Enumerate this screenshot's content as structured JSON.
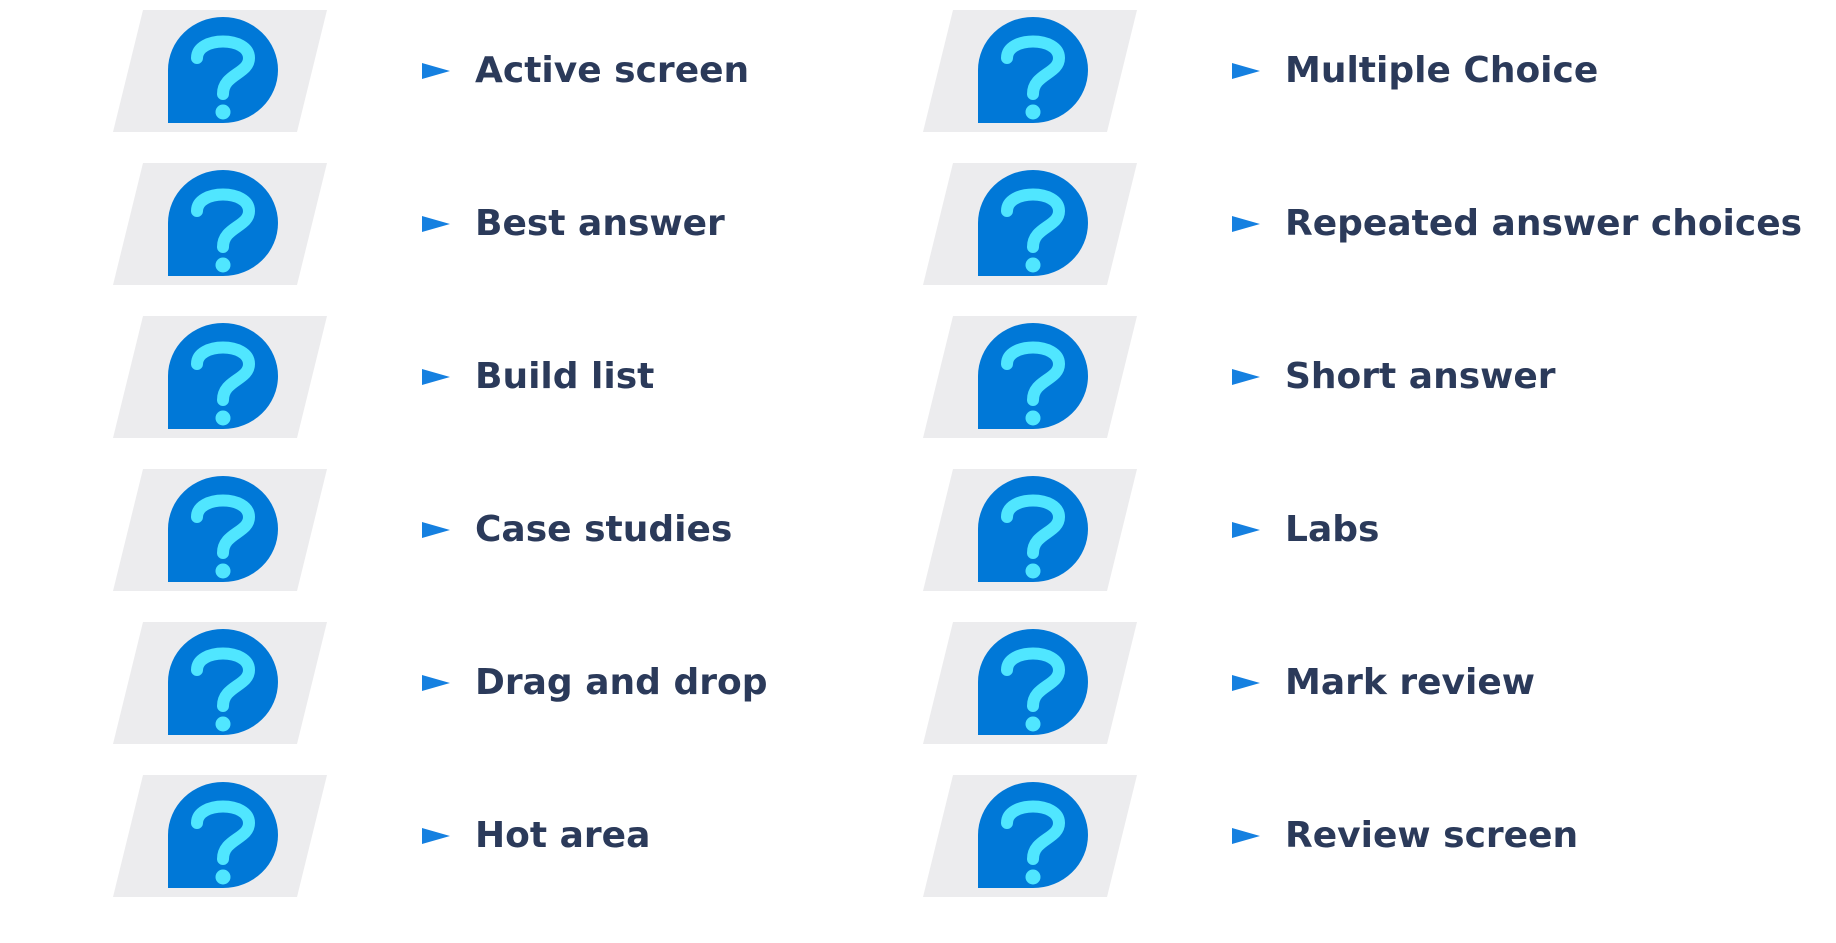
{
  "colors": {
    "background": "#ffffff",
    "tile": "#ececee",
    "bubble": "#0078d7",
    "question_mark": "#50e6ff",
    "bullet": "#1580e0",
    "label": "#2b3a5a"
  },
  "items": [
    {
      "label": "Active screen",
      "icon": "question-bubble-icon"
    },
    {
      "label": "Best answer",
      "icon": "question-bubble-icon"
    },
    {
      "label": "Build list",
      "icon": "question-bubble-icon"
    },
    {
      "label": "Case studies",
      "icon": "question-bubble-icon"
    },
    {
      "label": "Drag and drop",
      "icon": "question-bubble-icon"
    },
    {
      "label": "Hot area",
      "icon": "question-bubble-icon"
    },
    {
      "label": "Multiple Choice",
      "icon": "question-bubble-icon"
    },
    {
      "label": "Repeated answer choices",
      "icon": "question-bubble-icon"
    },
    {
      "label": "Short answer",
      "icon": "question-bubble-icon"
    },
    {
      "label": "Labs",
      "icon": "question-bubble-icon"
    },
    {
      "label": "Mark review",
      "icon": "question-bubble-icon"
    },
    {
      "label": "Review screen",
      "icon": "question-bubble-icon"
    }
  ]
}
